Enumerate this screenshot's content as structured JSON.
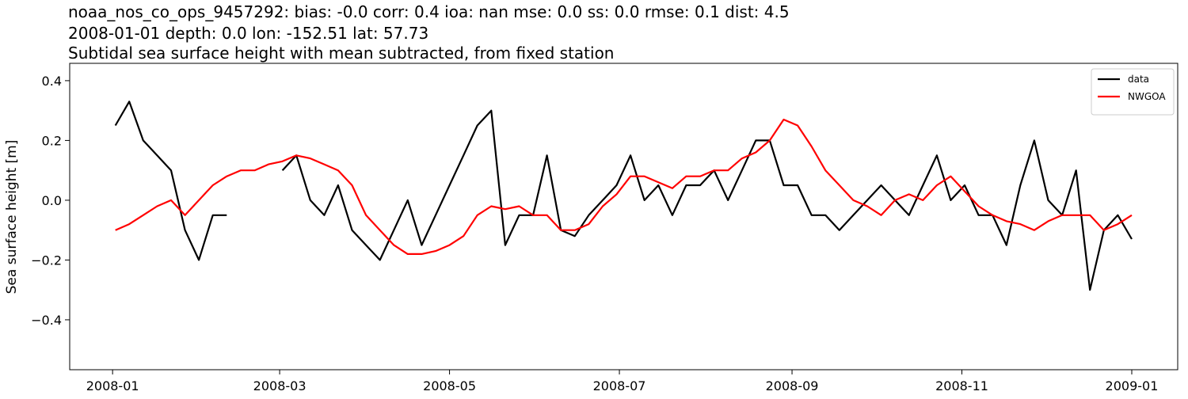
{
  "chart_data": {
    "type": "line",
    "title": [
      "noaa_nos_co_ops_9457292: bias: -0.0  corr: 0.4  ioa: nan  mse: 0.0  ss: 0.0  rmse: 0.1  dist: 4.5",
      "2008-01-01 depth: 0.0 lon: -152.51 lat: 57.73",
      "Subtidal sea surface height with mean subtracted, from fixed station"
    ],
    "y_label": "Sea surface height [m]",
    "x": [
      1,
      6,
      11,
      16,
      21,
      26,
      31,
      36,
      41,
      46,
      51,
      56,
      61,
      66,
      71,
      76,
      81,
      86,
      91,
      96,
      101,
      106,
      111,
      116,
      121,
      126,
      131,
      136,
      141,
      146,
      151,
      156,
      161,
      166,
      171,
      176,
      181,
      186,
      191,
      196,
      201,
      206,
      211,
      216,
      221,
      226,
      231,
      236,
      241,
      246,
      251,
      256,
      261,
      266,
      271,
      276,
      281,
      286,
      291,
      296,
      301,
      306,
      311,
      316,
      321,
      326,
      331,
      336,
      341,
      346,
      351,
      356,
      361,
      366
    ],
    "xlim": [
      -15.4,
      382.5
    ],
    "xticks": [
      {
        "value": 0,
        "label": "2008-01"
      },
      {
        "value": 60,
        "label": "2008-03"
      },
      {
        "value": 121,
        "label": "2008-05"
      },
      {
        "value": 182,
        "label": "2008-07"
      },
      {
        "value": 244,
        "label": "2008-09"
      },
      {
        "value": 305,
        "label": "2008-11"
      },
      {
        "value": 366,
        "label": "2009-01"
      }
    ],
    "ylim": [
      -0.567,
      0.458
    ],
    "yticks": [
      {
        "value": -0.4,
        "label": "−0.4"
      },
      {
        "value": -0.2,
        "label": "−0.2"
      },
      {
        "value": 0,
        "label": "0.0"
      },
      0.2,
      0.4
    ],
    "legend": "upper right",
    "series": [
      {
        "name": "data",
        "color": "#000000",
        "values": [
          0.25,
          0.33,
          0.2,
          0.15,
          0.1,
          -0.1,
          -0.2,
          -0.05,
          -0.05,
          null,
          null,
          null,
          0.1,
          0.15,
          0.0,
          -0.05,
          0.05,
          -0.1,
          -0.15,
          -0.2,
          -0.1,
          0.0,
          -0.15,
          -0.05,
          0.05,
          0.15,
          0.25,
          0.3,
          -0.15,
          -0.05,
          -0.05,
          0.15,
          -0.1,
          -0.12,
          -0.05,
          0.0,
          0.05,
          0.15,
          0.0,
          0.05,
          -0.05,
          0.05,
          0.05,
          0.1,
          0.0,
          0.1,
          0.2,
          0.2,
          0.05,
          0.05,
          -0.05,
          -0.05,
          -0.1,
          -0.05,
          0.0,
          0.05,
          0.0,
          -0.05,
          0.05,
          0.15,
          0.0,
          0.05,
          -0.05,
          -0.05,
          -0.15,
          0.05,
          0.2,
          0.0,
          -0.05,
          0.1,
          -0.3,
          -0.1,
          -0.05,
          -0.13
        ]
      },
      {
        "name": "NWGOA",
        "color": "#ff0000",
        "values": [
          -0.1,
          -0.08,
          -0.05,
          -0.02,
          0.0,
          -0.05,
          0.0,
          0.05,
          0.08,
          0.1,
          0.1,
          0.12,
          0.13,
          0.15,
          0.14,
          0.12,
          0.1,
          0.05,
          -0.05,
          -0.1,
          -0.15,
          -0.18,
          -0.18,
          -0.17,
          -0.15,
          -0.12,
          -0.05,
          -0.02,
          -0.03,
          -0.02,
          -0.05,
          -0.05,
          -0.1,
          -0.1,
          -0.08,
          -0.02,
          0.02,
          0.08,
          0.08,
          0.06,
          0.04,
          0.08,
          0.08,
          0.1,
          0.1,
          0.14,
          0.16,
          0.2,
          0.27,
          0.25,
          0.18,
          0.1,
          0.05,
          0.0,
          -0.02,
          -0.05,
          0.0,
          0.02,
          0.0,
          0.05,
          0.08,
          0.03,
          -0.02,
          -0.05,
          -0.07,
          -0.08,
          -0.1,
          -0.07,
          -0.05,
          -0.05,
          -0.05,
          -0.1,
          -0.08,
          -0.05
        ]
      }
    ]
  }
}
